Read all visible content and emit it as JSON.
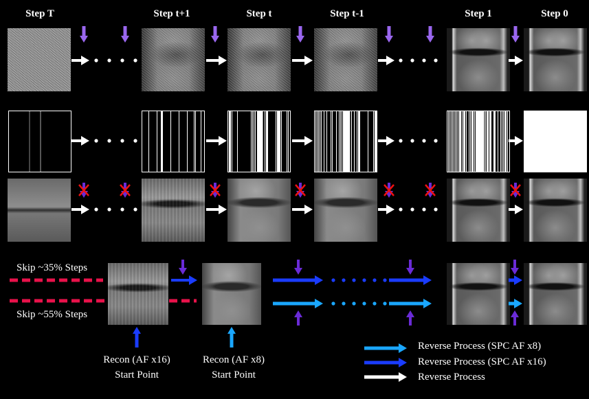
{
  "header": {
    "columns": [
      "Step T",
      "Step t+1",
      "Step t",
      "Step t-1",
      "Step 1",
      "Step 0"
    ]
  },
  "skips": {
    "top": "Skip ~35% Steps",
    "bottom": "Skip ~55% Steps"
  },
  "recon": {
    "af16": [
      "Recon (AF x16)",
      "Start Point"
    ],
    "af8": [
      "Recon (AF x8)",
      "Start Point"
    ]
  },
  "legend": {
    "light": "Reverse Process (SPC AF x8)",
    "dark": "Reverse Process (SPC AF x16)",
    "white": "Reverse Process"
  },
  "colors": {
    "white_arrow": "#ffffff",
    "purple_arrow": "#9966ee",
    "purple_dark": "#6a2bd6",
    "blue_arrow": "#1a3cff",
    "cyan_arrow": "#1aa7ff",
    "red_dash": "#e8124a",
    "red_x": "#ee1111"
  }
}
